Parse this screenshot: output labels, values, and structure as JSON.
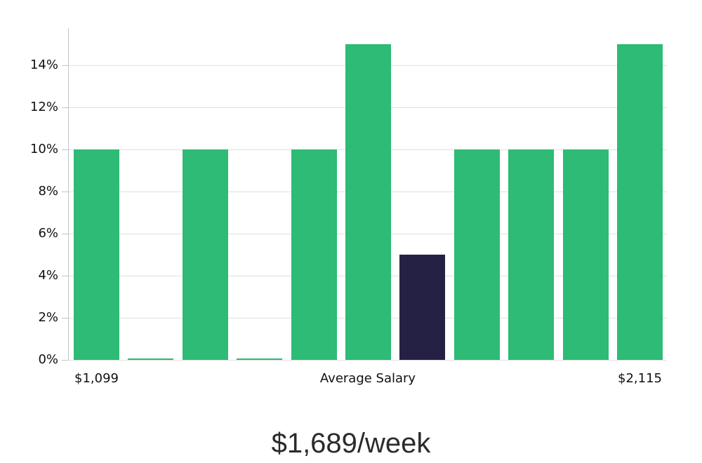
{
  "chart_data": {
    "type": "bar",
    "title": "$1,689/week",
    "title_position": "bottom-center",
    "values": [
      10,
      0,
      10,
      0,
      10,
      15,
      5,
      10,
      10,
      10,
      15
    ],
    "highlight_index": 6,
    "highlight_meaning": "average-salary-bin",
    "y_ticks": [
      0,
      2,
      4,
      6,
      8,
      10,
      12,
      14
    ],
    "y_tick_suffix": "%",
    "ylim": [
      0,
      15.8
    ],
    "grid": true,
    "legend": false,
    "xlabel": "",
    "ylabel": "",
    "x_axis_labels": [
      {
        "text": "$1,099",
        "anchor_bar": 0
      },
      {
        "text": "Average Salary",
        "anchor": "center"
      },
      {
        "text": "$2,115",
        "anchor_bar": 10
      }
    ],
    "colors": {
      "bar": "#2dbb75",
      "highlight_bar": "#252145",
      "gridline": "#e0e0e0",
      "axis": "#c4c4c4",
      "tick_label": "#111111",
      "title": "#2b2b2b"
    }
  }
}
